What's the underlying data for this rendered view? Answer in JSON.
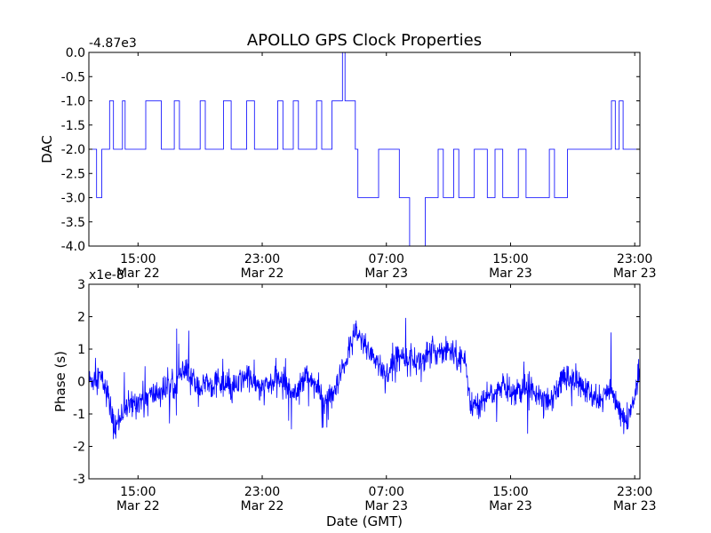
{
  "figure": {
    "title": "APOLLO GPS Clock Properties"
  },
  "chart_data": [
    {
      "type": "line",
      "ylabel": "DAC",
      "offset_label": "-4.87e3",
      "ylim": [
        -4.0,
        0.0
      ],
      "xlim": [
        "2013-03-22 11:50",
        "2013-03-23 23:20"
      ],
      "y_ticks": [
        "0.0",
        "-0.5",
        "-1.0",
        "-1.5",
        "-2.0",
        "-2.5",
        "-3.0",
        "-3.5",
        "-4.0"
      ],
      "x_ticks": [
        {
          "time": "15:00",
          "date": "Mar 22"
        },
        {
          "time": "23:00",
          "date": "Mar 22"
        },
        {
          "time": "07:00",
          "date": "Mar 23"
        },
        {
          "time": "15:00",
          "date": "Mar 23"
        },
        {
          "time": "23:00",
          "date": "Mar 23"
        }
      ],
      "series": [
        {
          "color": "#0000ff",
          "x": [
            "2013-03-22 11:50",
            "2013-03-22 12:05",
            "2013-03-22 12:20",
            "2013-03-22 12:40",
            "2013-03-22 13:10",
            "2013-03-22 13:25",
            "2013-03-22 14:00",
            "2013-03-22 14:10",
            "2013-03-22 15:30",
            "2013-03-22 16:30",
            "2013-03-22 17:20",
            "2013-03-22 17:40",
            "2013-03-22 19:00",
            "2013-03-22 19:20",
            "2013-03-22 20:30",
            "2013-03-22 21:00",
            "2013-03-22 22:00",
            "2013-03-22 22:30",
            "2013-03-23 00:00",
            "2013-03-23 00:20",
            "2013-03-23 01:00",
            "2013-03-23 01:20",
            "2013-03-23 02:30",
            "2013-03-23 02:50",
            "2013-03-23 03:30",
            "2013-03-23 03:40",
            "2013-03-23 04:00",
            "2013-03-23 04:10",
            "2013-03-23 04:20",
            "2013-03-23 04:30",
            "2013-03-23 05:00",
            "2013-03-23 05:10",
            "2013-03-23 06:30",
            "2013-03-23 07:50",
            "2013-03-23 08:20",
            "2013-03-23 08:30",
            "2013-03-23 09:30",
            "2013-03-23 10:20",
            "2013-03-23 10:40",
            "2013-03-23 11:20",
            "2013-03-23 11:40",
            "2013-03-23 12:40",
            "2013-03-23 13:30",
            "2013-03-23 14:00",
            "2013-03-23 14:30",
            "2013-03-23 15:30",
            "2013-03-23 16:00",
            "2013-03-23 17:30",
            "2013-03-23 17:50",
            "2013-03-23 18:40",
            "2013-03-23 19:00",
            "2013-03-23 20:30",
            "2013-03-23 21:30",
            "2013-03-23 21:45",
            "2013-03-23 22:00",
            "2013-03-23 22:15",
            "2013-03-23 22:40",
            "2013-03-23 23:20"
          ],
          "y": [
            -2.0,
            -2.0,
            -3.0,
            -2.0,
            -1.0,
            -2.0,
            -1.0,
            -2.0,
            -1.0,
            -2.0,
            -1.0,
            -2.0,
            -1.0,
            -2.0,
            -1.0,
            -2.0,
            -1.0,
            -2.0,
            -1.0,
            -2.0,
            -1.0,
            -2.0,
            -1.0,
            -2.0,
            -1.0,
            -1.0,
            -1.0,
            0.0,
            -1.0,
            -1.0,
            -2.0,
            -3.0,
            -2.0,
            -3.0,
            -3.0,
            -4.0,
            -3.0,
            -2.0,
            -3.0,
            -2.0,
            -3.0,
            -2.0,
            -3.0,
            -2.0,
            -3.0,
            -2.0,
            -3.0,
            -2.0,
            -3.0,
            -2.0,
            -2.0,
            -2.0,
            -1.0,
            -2.0,
            -1.0,
            -2.0,
            -2.0,
            -2.0
          ]
        }
      ]
    },
    {
      "type": "line",
      "ylabel": "Phase (s)",
      "xlabel": "Date (GMT)",
      "offset_label": "x1e-8",
      "ylim": [
        -3,
        3
      ],
      "xlim": [
        "2013-03-22 11:50",
        "2013-03-23 23:20"
      ],
      "y_ticks": [
        "3",
        "2",
        "1",
        "0",
        "-1",
        "-2",
        "-3"
      ],
      "x_ticks": [
        {
          "time": "15:00",
          "date": "Mar 22"
        },
        {
          "time": "23:00",
          "date": "Mar 22"
        },
        {
          "time": "07:00",
          "date": "Mar 23"
        },
        {
          "time": "15:00",
          "date": "Mar 23"
        },
        {
          "time": "23:00",
          "date": "Mar 23"
        }
      ],
      "series": [
        {
          "color": "#0000ff",
          "x": [
            "2013-03-22 11:50",
            "2013-03-22 12:30",
            "2013-03-22 13:00",
            "2013-03-22 13:30",
            "2013-03-22 14:00",
            "2013-03-22 15:00",
            "2013-03-22 16:00",
            "2013-03-22 17:00",
            "2013-03-22 18:00",
            "2013-03-22 19:00",
            "2013-03-22 20:00",
            "2013-03-22 21:00",
            "2013-03-22 22:00",
            "2013-03-22 23:00",
            "2013-03-23 00:00",
            "2013-03-23 01:00",
            "2013-03-23 02:00",
            "2013-03-23 03:00",
            "2013-03-23 03:40",
            "2013-03-23 04:30",
            "2013-03-23 05:00",
            "2013-03-23 06:00",
            "2013-03-23 07:00",
            "2013-03-23 08:00",
            "2013-03-23 09:00",
            "2013-03-23 10:00",
            "2013-03-23 11:00",
            "2013-03-23 12:00",
            "2013-03-23 12:30",
            "2013-03-23 13:30",
            "2013-03-23 14:30",
            "2013-03-23 15:30",
            "2013-03-23 16:30",
            "2013-03-23 17:30",
            "2013-03-23 18:30",
            "2013-03-23 19:30",
            "2013-03-23 20:30",
            "2013-03-23 21:30",
            "2013-03-23 22:30",
            "2013-03-23 23:20"
          ],
          "y": [
            0.0,
            0.2,
            -0.3,
            -1.5,
            -0.9,
            -0.6,
            -0.4,
            -0.2,
            0.3,
            -0.2,
            0.0,
            -0.3,
            0.2,
            -0.3,
            0.1,
            -0.3,
            0.2,
            -0.6,
            -0.4,
            0.8,
            1.5,
            0.9,
            0.2,
            0.9,
            0.6,
            0.9,
            1.0,
            0.7,
            -0.8,
            -0.5,
            -0.2,
            -0.3,
            -0.2,
            -0.6,
            0.2,
            -0.1,
            -0.6,
            -0.3,
            -1.4,
            0.3
          ]
        }
      ]
    }
  ]
}
